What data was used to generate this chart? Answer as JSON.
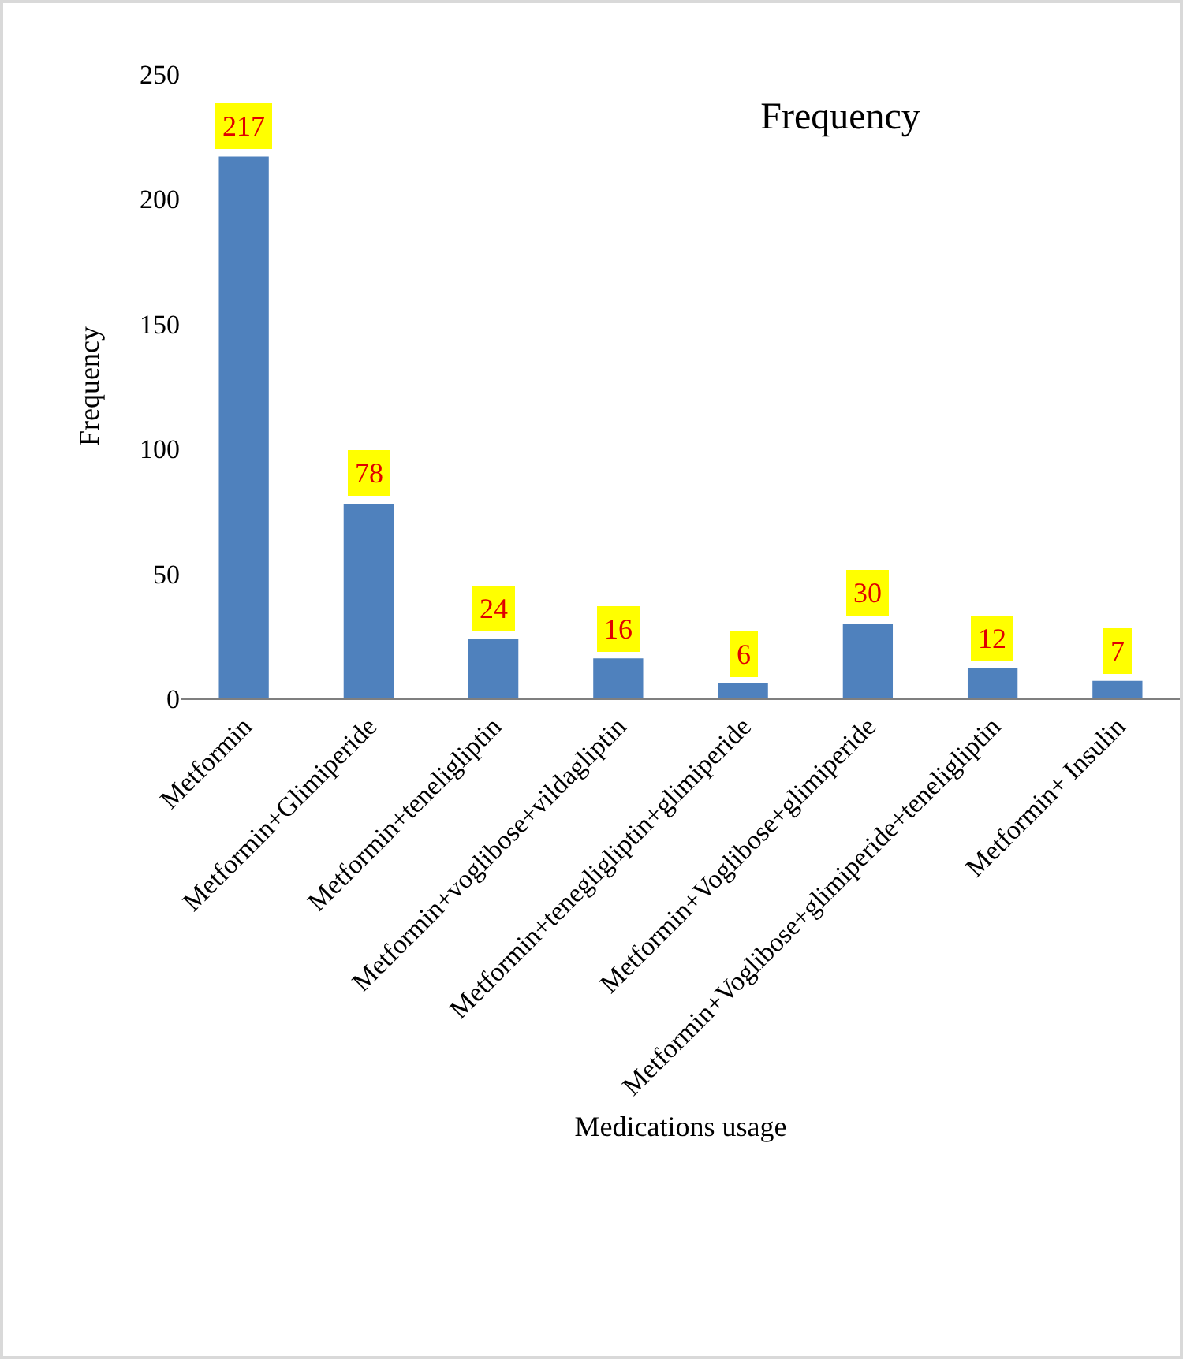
{
  "chart_data": {
    "type": "bar",
    "title": "Frequency",
    "xlabel": "Medications usage",
    "ylabel": "Frequency",
    "categories": [
      "Metformin",
      "Metformin+Glimiperide",
      "Metformin+teneligliptin",
      "Metformin+voglibose+vildagliptin",
      "Metformin+tenegligliptin+glimiperide",
      "Metformin+Voglibose+glimiperide",
      "Metformin+Voglibose+glimiperide+teneligliptin",
      "Metformin+ Insulin"
    ],
    "values": [
      217,
      78,
      24,
      16,
      6,
      30,
      12,
      7
    ],
    "color": "#4f81bd",
    "ylim": [
      0,
      250
    ],
    "yticks": [
      0,
      50,
      100,
      150,
      200,
      250
    ],
    "grid": false,
    "data_labels": true,
    "legend": false
  }
}
